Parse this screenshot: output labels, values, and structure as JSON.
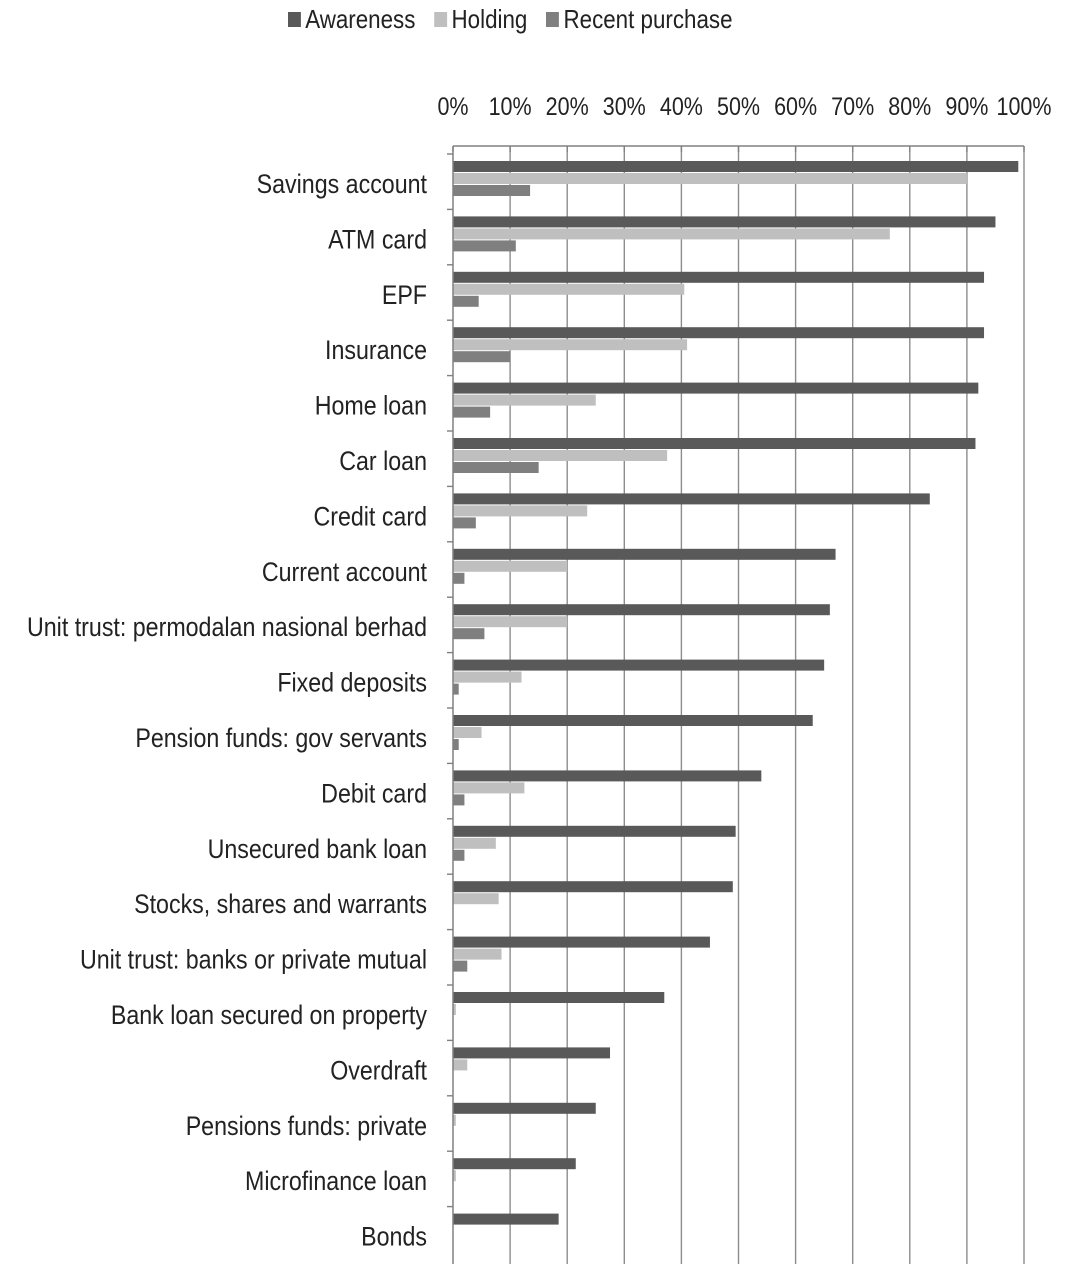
{
  "chart_data": {
    "type": "bar",
    "orientation": "horizontal",
    "title": "",
    "xlabel": "",
    "ylabel": "",
    "xlim": [
      0,
      100
    ],
    "x_ticks": [
      "0%",
      "10%",
      "20%",
      "30%",
      "40%",
      "50%",
      "60%",
      "70%",
      "80%",
      "90%",
      "100%"
    ],
    "x_axis_position": "top",
    "grid": true,
    "legend_position": "top",
    "categories": [
      "Savings account",
      "ATM card",
      "EPF",
      "Insurance",
      "Home loan",
      "Car loan",
      "Credit card",
      "Current account",
      "Unit trust: permodalan nasional berhad",
      "Fixed deposits",
      "Pension funds: gov servants",
      "Debit card",
      "Unsecured bank loan",
      "Stocks, shares and warrants",
      "Unit trust: banks or private mutual",
      "Bank loan secured on property",
      "Overdraft",
      "Pensions funds: private",
      "Microfinance loan",
      "Bonds"
    ],
    "series": [
      {
        "name": "Awareness",
        "color": "#595959",
        "values": [
          99,
          95,
          93,
          93,
          92,
          91.5,
          83.5,
          67,
          66,
          65,
          63,
          54,
          49.5,
          49,
          45,
          37,
          27.5,
          25,
          21.5,
          18.5
        ]
      },
      {
        "name": "Holding",
        "color": "#bfbfbf",
        "values": [
          90,
          76.5,
          40.5,
          41,
          25,
          37.5,
          23.5,
          20,
          20,
          12,
          5,
          12.5,
          7.5,
          8,
          8.5,
          0.5,
          2.5,
          0.5,
          0.5,
          0
        ]
      },
      {
        "name": "Recent purchase",
        "color": "#7f7f7f",
        "values": [
          13.5,
          11,
          4.5,
          10,
          6.5,
          15,
          4,
          2,
          5.5,
          1,
          1,
          2,
          2,
          0,
          2.5,
          0,
          0,
          0,
          0,
          0
        ]
      }
    ]
  }
}
